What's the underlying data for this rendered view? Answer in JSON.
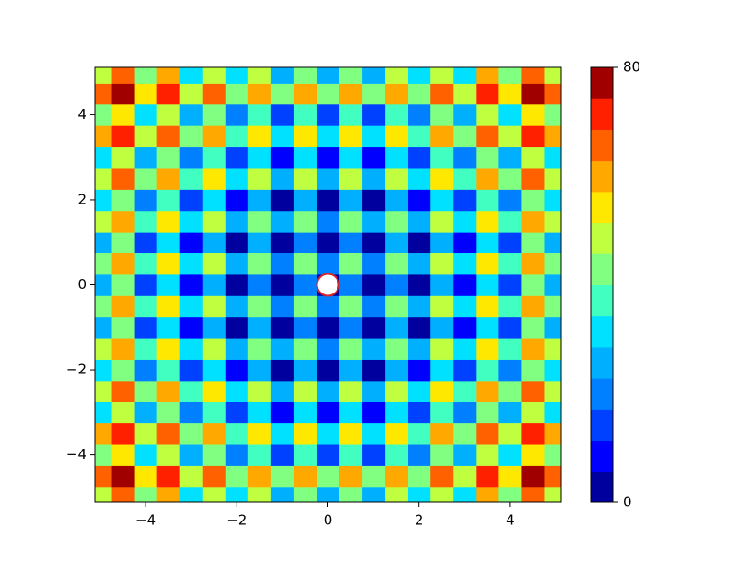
{
  "chart_data": {
    "type": "contour",
    "x": [
      -5,
      -4.5,
      -4,
      -3.5,
      -3,
      -2.5,
      -2,
      -1.5,
      -1,
      -0.5,
      0,
      0.5,
      1,
      1.5,
      2,
      2.5,
      3,
      3.5,
      4,
      4.5,
      5
    ],
    "y": [
      -5,
      -4.5,
      -4,
      -3.5,
      -3,
      -2.5,
      -2,
      -1.5,
      -1,
      -0.5,
      0,
      0.5,
      1,
      1.5,
      2,
      2.5,
      3,
      3.5,
      4,
      4.5,
      5
    ],
    "z": [
      [
        50,
        65.25,
        41,
        57.25,
        34,
        51.25,
        29,
        47.25,
        26,
        45.25,
        25,
        45.25,
        26,
        47.25,
        29,
        51.25,
        34,
        57.25,
        41,
        65.25,
        50
      ],
      [
        65.25,
        80.5,
        56.25,
        72.5,
        49.25,
        66.5,
        44.25,
        62.5,
        41.25,
        60.5,
        40.25,
        60.5,
        41.25,
        62.5,
        44.25,
        66.5,
        49.25,
        72.5,
        56.25,
        80.5,
        65.25
      ],
      [
        41,
        56.25,
        32,
        48.25,
        25,
        42.25,
        20,
        38.25,
        17,
        36.25,
        16,
        36.25,
        17,
        38.25,
        20,
        42.25,
        25,
        48.25,
        32,
        56.25,
        41
      ],
      [
        57.25,
        72.5,
        48.25,
        64.5,
        41.25,
        58.5,
        36.25,
        54.5,
        33.25,
        52.5,
        32.25,
        52.5,
        33.25,
        54.5,
        36.25,
        58.5,
        41.25,
        64.5,
        48.25,
        72.5,
        57.25
      ],
      [
        34,
        49.25,
        25,
        41.25,
        18,
        35.25,
        13,
        31.25,
        10,
        29.25,
        9,
        29.25,
        10,
        31.25,
        13,
        35.25,
        18,
        41.25,
        25,
        49.25,
        34
      ],
      [
        51.25,
        66.5,
        42.25,
        58.5,
        35.25,
        52.5,
        30.25,
        48.5,
        27.25,
        46.5,
        26.25,
        46.5,
        27.25,
        48.5,
        30.25,
        52.5,
        35.25,
        58.5,
        42.25,
        66.5,
        51.25
      ],
      [
        29,
        44.25,
        20,
        36.25,
        13,
        30.25,
        8,
        26.25,
        5,
        24.25,
        4,
        24.25,
        5,
        26.25,
        8,
        30.25,
        13,
        36.25,
        20,
        44.25,
        29
      ],
      [
        47.25,
        62.5,
        38.25,
        54.5,
        31.25,
        48.5,
        26.25,
        44.5,
        23.25,
        42.5,
        22.25,
        42.5,
        23.25,
        44.5,
        26.25,
        48.5,
        31.25,
        54.5,
        38.25,
        62.5,
        47.25
      ],
      [
        26,
        41.25,
        17,
        33.25,
        10,
        27.25,
        5,
        23.25,
        2,
        21.25,
        1,
        21.25,
        2,
        23.25,
        5,
        27.25,
        10,
        33.25,
        17,
        41.25,
        26
      ],
      [
        45.25,
        60.5,
        36.25,
        52.5,
        29.25,
        46.5,
        24.25,
        42.5,
        21.25,
        40.5,
        20.25,
        40.5,
        21.25,
        42.5,
        24.25,
        46.5,
        29.25,
        52.5,
        36.25,
        60.5,
        45.25
      ],
      [
        25,
        40.25,
        16,
        32.25,
        9,
        26.25,
        4,
        22.25,
        1,
        20.25,
        0,
        20.25,
        1,
        22.25,
        4,
        26.25,
        9,
        32.25,
        16,
        40.25,
        25
      ],
      [
        45.25,
        60.5,
        36.25,
        52.5,
        29.25,
        46.5,
        24.25,
        42.5,
        21.25,
        40.5,
        20.25,
        40.5,
        21.25,
        42.5,
        24.25,
        46.5,
        29.25,
        52.5,
        36.25,
        60.5,
        45.25
      ],
      [
        26,
        41.25,
        17,
        33.25,
        10,
        27.25,
        5,
        23.25,
        2,
        21.25,
        1,
        21.25,
        2,
        23.25,
        5,
        27.25,
        10,
        33.25,
        17,
        41.25,
        26
      ],
      [
        47.25,
        62.5,
        38.25,
        54.5,
        31.25,
        48.5,
        26.25,
        44.5,
        23.25,
        42.5,
        22.25,
        42.5,
        23.25,
        44.5,
        26.25,
        48.5,
        31.25,
        54.5,
        38.25,
        62.5,
        47.25
      ],
      [
        29,
        44.25,
        20,
        36.25,
        13,
        30.25,
        8,
        26.25,
        5,
        24.25,
        4,
        24.25,
        5,
        26.25,
        8,
        30.25,
        13,
        36.25,
        20,
        44.25,
        29
      ],
      [
        51.25,
        66.5,
        42.25,
        58.5,
        35.25,
        52.5,
        30.25,
        48.5,
        27.25,
        46.5,
        26.25,
        46.5,
        27.25,
        48.5,
        30.25,
        52.5,
        35.25,
        58.5,
        42.25,
        66.5,
        51.25
      ],
      [
        34,
        49.25,
        25,
        41.25,
        18,
        35.25,
        13,
        31.25,
        10,
        29.25,
        9,
        29.25,
        10,
        31.25,
        13,
        35.25,
        18,
        41.25,
        25,
        49.25,
        34
      ],
      [
        57.25,
        72.5,
        48.25,
        64.5,
        41.25,
        58.5,
        36.25,
        54.5,
        33.25,
        52.5,
        32.25,
        52.5,
        33.25,
        54.5,
        36.25,
        58.5,
        41.25,
        64.5,
        48.25,
        72.5,
        57.25
      ],
      [
        41,
        56.25,
        32,
        48.25,
        25,
        42.25,
        20,
        38.25,
        17,
        36.25,
        16,
        36.25,
        17,
        38.25,
        20,
        42.25,
        25,
        48.25,
        32,
        56.25,
        41
      ],
      [
        65.25,
        80.5,
        56.25,
        72.5,
        49.25,
        66.5,
        44.25,
        62.5,
        41.25,
        60.5,
        40.25,
        60.5,
        41.25,
        62.5,
        44.25,
        66.5,
        49.25,
        72.5,
        56.25,
        80.5,
        65.25
      ],
      [
        50,
        65.25,
        41,
        57.25,
        34,
        51.25,
        29,
        47.25,
        26,
        45.25,
        25,
        45.25,
        26,
        47.25,
        29,
        51.25,
        34,
        57.25,
        41,
        65.25,
        50
      ]
    ],
    "colors": [
      "#00009f",
      "#0000ff",
      "#0040ff",
      "#0080ff",
      "#00b0ff",
      "#00e0ff",
      "#40ffc0",
      "#80ff80",
      "#c0ff40",
      "#ffe800",
      "#ffa800",
      "#ff6000",
      "#ff2000",
      "#a00000"
    ],
    "clim": [
      0,
      80
    ],
    "cticks": [
      0,
      80
    ],
    "xlim": [
      -5.12,
      5.12
    ],
    "ylim": [
      -5.12,
      5.12
    ],
    "xticks": [
      {
        "value": -4,
        "label": "−4"
      },
      {
        "value": -2,
        "label": "−2"
      },
      0,
      2,
      4
    ],
    "yticks": [
      {
        "value": -4,
        "label": "−4"
      },
      {
        "value": -2,
        "label": "−2"
      },
      0,
      2,
      4
    ],
    "point": {
      "x": 0,
      "y": 0,
      "color": "#ffffff",
      "edgecolor": "#d62728"
    }
  }
}
